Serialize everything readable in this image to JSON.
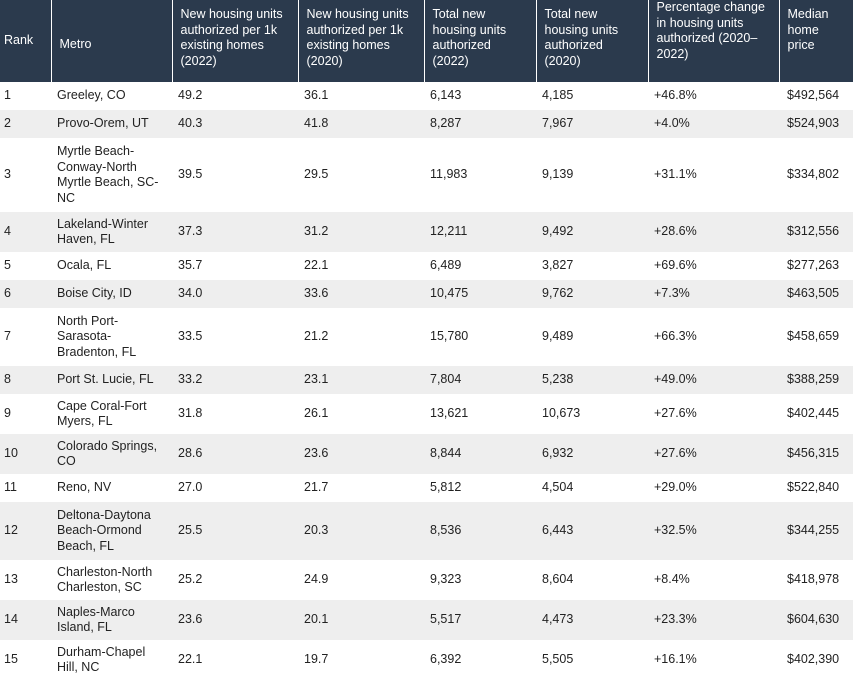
{
  "table": {
    "headers": [
      "Rank",
      "Metro",
      "New housing units authorized per 1k existing homes (2022)",
      "New housing units authorized per 1k existing homes (2020)",
      "Total new housing units authorized (2022)",
      "Total new housing units authorized (2020)",
      "Percentage change in housing units authorized (2020–2022)",
      "Median home price"
    ],
    "rows": [
      [
        "1",
        "Greeley, CO",
        "49.2",
        "36.1",
        "6,143",
        "4,185",
        "+46.8%",
        "$492,564"
      ],
      [
        "2",
        "Provo-Orem, UT",
        "40.3",
        "41.8",
        "8,287",
        "7,967",
        "+4.0%",
        "$524,903"
      ],
      [
        "3",
        "Myrtle Beach-Conway-North Myrtle Beach, SC-NC",
        "39.5",
        "29.5",
        "11,983",
        "9,139",
        "+31.1%",
        "$334,802"
      ],
      [
        "4",
        "Lakeland-Winter Haven, FL",
        "37.3",
        "31.2",
        "12,211",
        "9,492",
        "+28.6%",
        "$312,556"
      ],
      [
        "5",
        "Ocala, FL",
        "35.7",
        "22.1",
        "6,489",
        "3,827",
        "+69.6%",
        "$277,263"
      ],
      [
        "6",
        "Boise City, ID",
        "34.0",
        "33.6",
        "10,475",
        "9,762",
        "+7.3%",
        "$463,505"
      ],
      [
        "7",
        "North Port-Sarasota-Bradenton, FL",
        "33.5",
        "21.2",
        "15,780",
        "9,489",
        "+66.3%",
        "$458,659"
      ],
      [
        "8",
        "Port St. Lucie, FL",
        "33.2",
        "23.1",
        "7,804",
        "5,238",
        "+49.0%",
        "$388,259"
      ],
      [
        "9",
        "Cape Coral-Fort Myers, FL",
        "31.8",
        "26.1",
        "13,621",
        "10,673",
        "+27.6%",
        "$402,445"
      ],
      [
        "10",
        "Colorado Springs, CO",
        "28.6",
        "23.6",
        "8,844",
        "6,932",
        "+27.6%",
        "$456,315"
      ],
      [
        "11",
        "Reno, NV",
        "27.0",
        "21.7",
        "5,812",
        "4,504",
        "+29.0%",
        "$522,840"
      ],
      [
        "12",
        "Deltona-Daytona Beach-Ormond Beach, FL",
        "25.5",
        "20.3",
        "8,536",
        "6,443",
        "+32.5%",
        "$344,255"
      ],
      [
        "13",
        "Charleston-North Charleston, SC",
        "25.2",
        "24.9",
        "9,323",
        "8,604",
        "+8.4%",
        "$418,978"
      ],
      [
        "14",
        "Naples-Marco Island, FL",
        "23.6",
        "20.1",
        "5,517",
        "4,473",
        "+23.3%",
        "$604,630"
      ],
      [
        "15",
        "Durham-Chapel Hill, NC",
        "22.1",
        "19.7",
        "6,392",
        "5,505",
        "+16.1%",
        "$402,390"
      ]
    ]
  }
}
